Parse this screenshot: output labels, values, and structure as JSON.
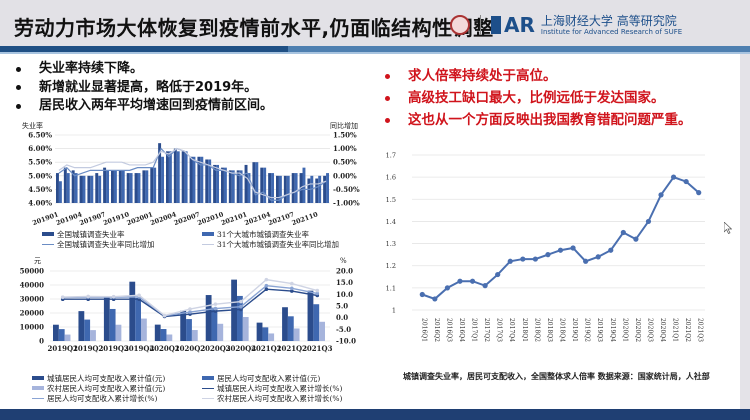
{
  "header": {
    "title": "劳动力市场大体恢复到疫情前水平,仍面临结构性调整",
    "logo_iar": "AR",
    "logo_uni_cn": "上海财经大学 高等研究院",
    "logo_uni_en": "Institute for Advanced Research of SUFE"
  },
  "bullets_left": [
    "失业率持续下降。",
    "新增就业显著提高，略低于2019年。",
    "居民收入两年平均增速回到疫情前区间。"
  ],
  "bullets_right": [
    "求人倍率持续处于高位。",
    "高级技工缺口最大，比例远低于发达国家。",
    "这也从一个方面反映出我国教育错配问题严重。"
  ],
  "colors": {
    "accent_red": "#d0141c",
    "bar_dark": "#2b4c8c",
    "bar_mid": "#3f68b0",
    "bar_light": "#a6b4dc",
    "line_blue": "#4a6fb0",
    "header_blue": "#1f4f84"
  },
  "source_note": "城镇调查失业率，居民可支配收入，全国整体求人倍率 数据来源：国家统计局，人社部",
  "chart_data": [
    {
      "type": "bar",
      "title": "",
      "ylabel": "失业率",
      "y2label": "同比增加",
      "ylim": [
        4.0,
        6.5
      ],
      "y2lim": [
        -1.0,
        1.5
      ],
      "yticks": [
        "4.00%",
        "4.50%",
        "5.00%",
        "5.50%",
        "6.00%",
        "6.50%"
      ],
      "y2ticks": [
        "-1.00%",
        "-0.50%",
        "0.00%",
        "0.50%",
        "1.00%",
        "1.50%"
      ],
      "x_tick_labels": [
        "201901",
        "201904",
        "201907",
        "201910",
        "202001",
        "202004",
        "202007",
        "202010",
        "202101",
        "202104",
        "202107",
        "202110"
      ],
      "categories": [
        "201901",
        "201902",
        "201903",
        "201904",
        "201905",
        "201906",
        "201907",
        "201908",
        "201909",
        "201910",
        "201911",
        "201912",
        "202001",
        "202002",
        "202003",
        "202004",
        "202005",
        "202006",
        "202007",
        "202008",
        "202009",
        "202010",
        "202011",
        "202012",
        "202101",
        "202102",
        "202103",
        "202104",
        "202105",
        "202106",
        "202107",
        "202108",
        "202109",
        "202110",
        "202111"
      ],
      "series": [
        {
          "name": "全国城镇调查失业率",
          "kind": "bar",
          "axis": "left",
          "values": [
            5.1,
            5.3,
            5.2,
            5.0,
            5.0,
            5.1,
            5.3,
            5.2,
            5.2,
            5.1,
            5.1,
            5.2,
            5.3,
            6.2,
            5.9,
            6.0,
            5.9,
            5.7,
            5.7,
            5.6,
            5.4,
            5.3,
            5.2,
            5.2,
            5.4,
            5.5,
            5.3,
            5.1,
            5.0,
            5.0,
            5.1,
            5.1,
            4.9,
            4.9,
            5.0
          ]
        },
        {
          "name": "31个大城市城镇调查失业率",
          "kind": "bar",
          "axis": "left",
          "values": [
            4.8,
            5.1,
            5.1,
            5.0,
            5.0,
            5.0,
            5.2,
            5.2,
            5.2,
            5.1,
            5.1,
            5.2,
            5.3,
            5.7,
            5.9,
            5.9,
            5.9,
            5.7,
            5.7,
            5.6,
            5.4,
            5.3,
            5.2,
            5.2,
            5.1,
            5.5,
            5.3,
            5.1,
            5.0,
            5.0,
            5.1,
            5.3,
            5.0,
            5.0,
            5.1
          ]
        },
        {
          "name": "全国城镇调查失业率同比增加",
          "kind": "line",
          "axis": "right",
          "values": [
            0.1,
            0.3,
            0.0,
            0.1,
            0.2,
            0.2,
            0.2,
            0.2,
            0.2,
            0.2,
            0.3,
            0.3,
            0.3,
            1.0,
            0.7,
            1.0,
            0.9,
            0.6,
            0.4,
            0.4,
            0.2,
            0.2,
            0.1,
            0.0,
            0.1,
            -0.7,
            -0.6,
            -0.9,
            -0.9,
            -0.7,
            -0.6,
            -0.5,
            -0.5,
            -0.4,
            -0.2
          ]
        },
        {
          "name": "31个大城市城镇调查失业率同比增加",
          "kind": "line",
          "axis": "right",
          "values": [
            0.2,
            0.4,
            0.3,
            0.3,
            0.3,
            0.4,
            0.5,
            0.5,
            0.5,
            0.4,
            0.4,
            0.4,
            0.5,
            0.9,
            0.8,
            1.0,
            0.9,
            0.6,
            0.5,
            0.4,
            0.3,
            0.2,
            0.1,
            0.1,
            -0.1,
            -0.6,
            -0.7,
            -0.8,
            -0.8,
            -0.7,
            -0.6,
            -0.4,
            -0.3,
            -0.3,
            -0.2
          ]
        }
      ]
    },
    {
      "type": "bar",
      "title": "",
      "ylabel": "元",
      "y2label": "%",
      "ylim": [
        0,
        50000
      ],
      "y2lim": [
        -10,
        20
      ],
      "yticks": [
        "0",
        "10000",
        "20000",
        "30000",
        "40000",
        "50000"
      ],
      "y2ticks": [
        "-10.0",
        "-5.0",
        "0.0",
        "5.0",
        "10.0",
        "15.0",
        "20.0"
      ],
      "categories": [
        "2019Q1",
        "2019Q2",
        "2019Q3",
        "2019Q4",
        "2020Q1",
        "2020Q2",
        "2020Q3",
        "2020Q4",
        "2021Q1",
        "2021Q2",
        "2021Q3"
      ],
      "series": [
        {
          "name": "城镇居民人均可支配收入累计值(元)",
          "kind": "bar",
          "axis": "left",
          "values": [
            11633,
            21342,
            31939,
            42359,
            11691,
            21655,
            32821,
            43834,
            13120,
            24125,
            35946
          ]
        },
        {
          "name": "居民人均可支配收入累计值(元)",
          "kind": "bar",
          "axis": "left",
          "values": [
            8493,
            15294,
            22882,
            30733,
            8561,
            15666,
            23781,
            32189,
            9730,
            17642,
            26265
          ]
        },
        {
          "name": "农村居民人均可支配收入累计值(元)",
          "kind": "bar",
          "axis": "left",
          "values": [
            4600,
            7778,
            11622,
            16021,
            4641,
            7840,
            12297,
            17131,
            5398,
            8950,
            13726
          ]
        },
        {
          "name": "城镇居民人均可支配收入累计增长(%)",
          "kind": "line",
          "axis": "right",
          "values": [
            7.9,
            7.9,
            7.9,
            7.9,
            0.5,
            1.5,
            2.8,
            3.5,
            12.2,
            11.4,
            9.5
          ]
        },
        {
          "name": "居民人均可支配收入累计增长(%)",
          "kind": "line",
          "axis": "right",
          "values": [
            8.7,
            8.8,
            8.8,
            8.9,
            0.8,
            2.4,
            3.9,
            4.7,
            13.7,
            12.6,
            10.4
          ]
        },
        {
          "name": "农村居民人均可支配收入累计增长(%)",
          "kind": "line",
          "axis": "right",
          "values": [
            8.8,
            9.1,
            9.0,
            9.6,
            0.9,
            3.7,
            5.8,
            6.9,
            16.3,
            14.6,
            11.6
          ]
        }
      ]
    },
    {
      "type": "line",
      "title": "",
      "xlabel": "",
      "ylabel": "",
      "ylim": [
        1.0,
        1.7
      ],
      "yticks": [
        "1",
        "1.1",
        "1.2",
        "1.3",
        "1.4",
        "1.5",
        "1.6",
        "1.7"
      ],
      "categories": [
        "2016Q1",
        "2016Q2",
        "2016Q3",
        "2016Q4",
        "2017Q1",
        "2017Q2",
        "2017Q3",
        "2017Q4",
        "2018Q1",
        "2018Q2",
        "2018Q3",
        "2018Q4",
        "2019Q1",
        "2019Q2",
        "2019Q3",
        "2019Q4",
        "2020Q1",
        "2020Q2",
        "2020Q3",
        "2020Q4",
        "2021Q1",
        "2021Q2",
        "2021Q3"
      ],
      "series": [
        {
          "name": "全国整体求人倍率",
          "values": [
            1.07,
            1.05,
            1.1,
            1.13,
            1.13,
            1.11,
            1.16,
            1.22,
            1.23,
            1.23,
            1.25,
            1.27,
            1.28,
            1.22,
            1.24,
            1.27,
            1.35,
            1.32,
            1.4,
            1.52,
            1.6,
            1.58,
            1.53
          ]
        }
      ],
      "grid": true
    }
  ],
  "legends": {
    "chart1": [
      "全国城镇调查失业率",
      "31个大城市城镇调查失业率",
      "全国城镇调查失业率同比增加",
      "31个大城市城镇调查失业率同比增加"
    ],
    "chart2": [
      "城镇居民人均可支配收入累计值(元)",
      "居民人均可支配收入累计值(元)",
      "农村居民人均可支配收入累计值(元)",
      "城镇居民人均可支配收入累计增长(%)",
      "居民人均可支配收入累计增长(%)",
      "农村居民人均可支配收入累计增长(%)"
    ]
  }
}
